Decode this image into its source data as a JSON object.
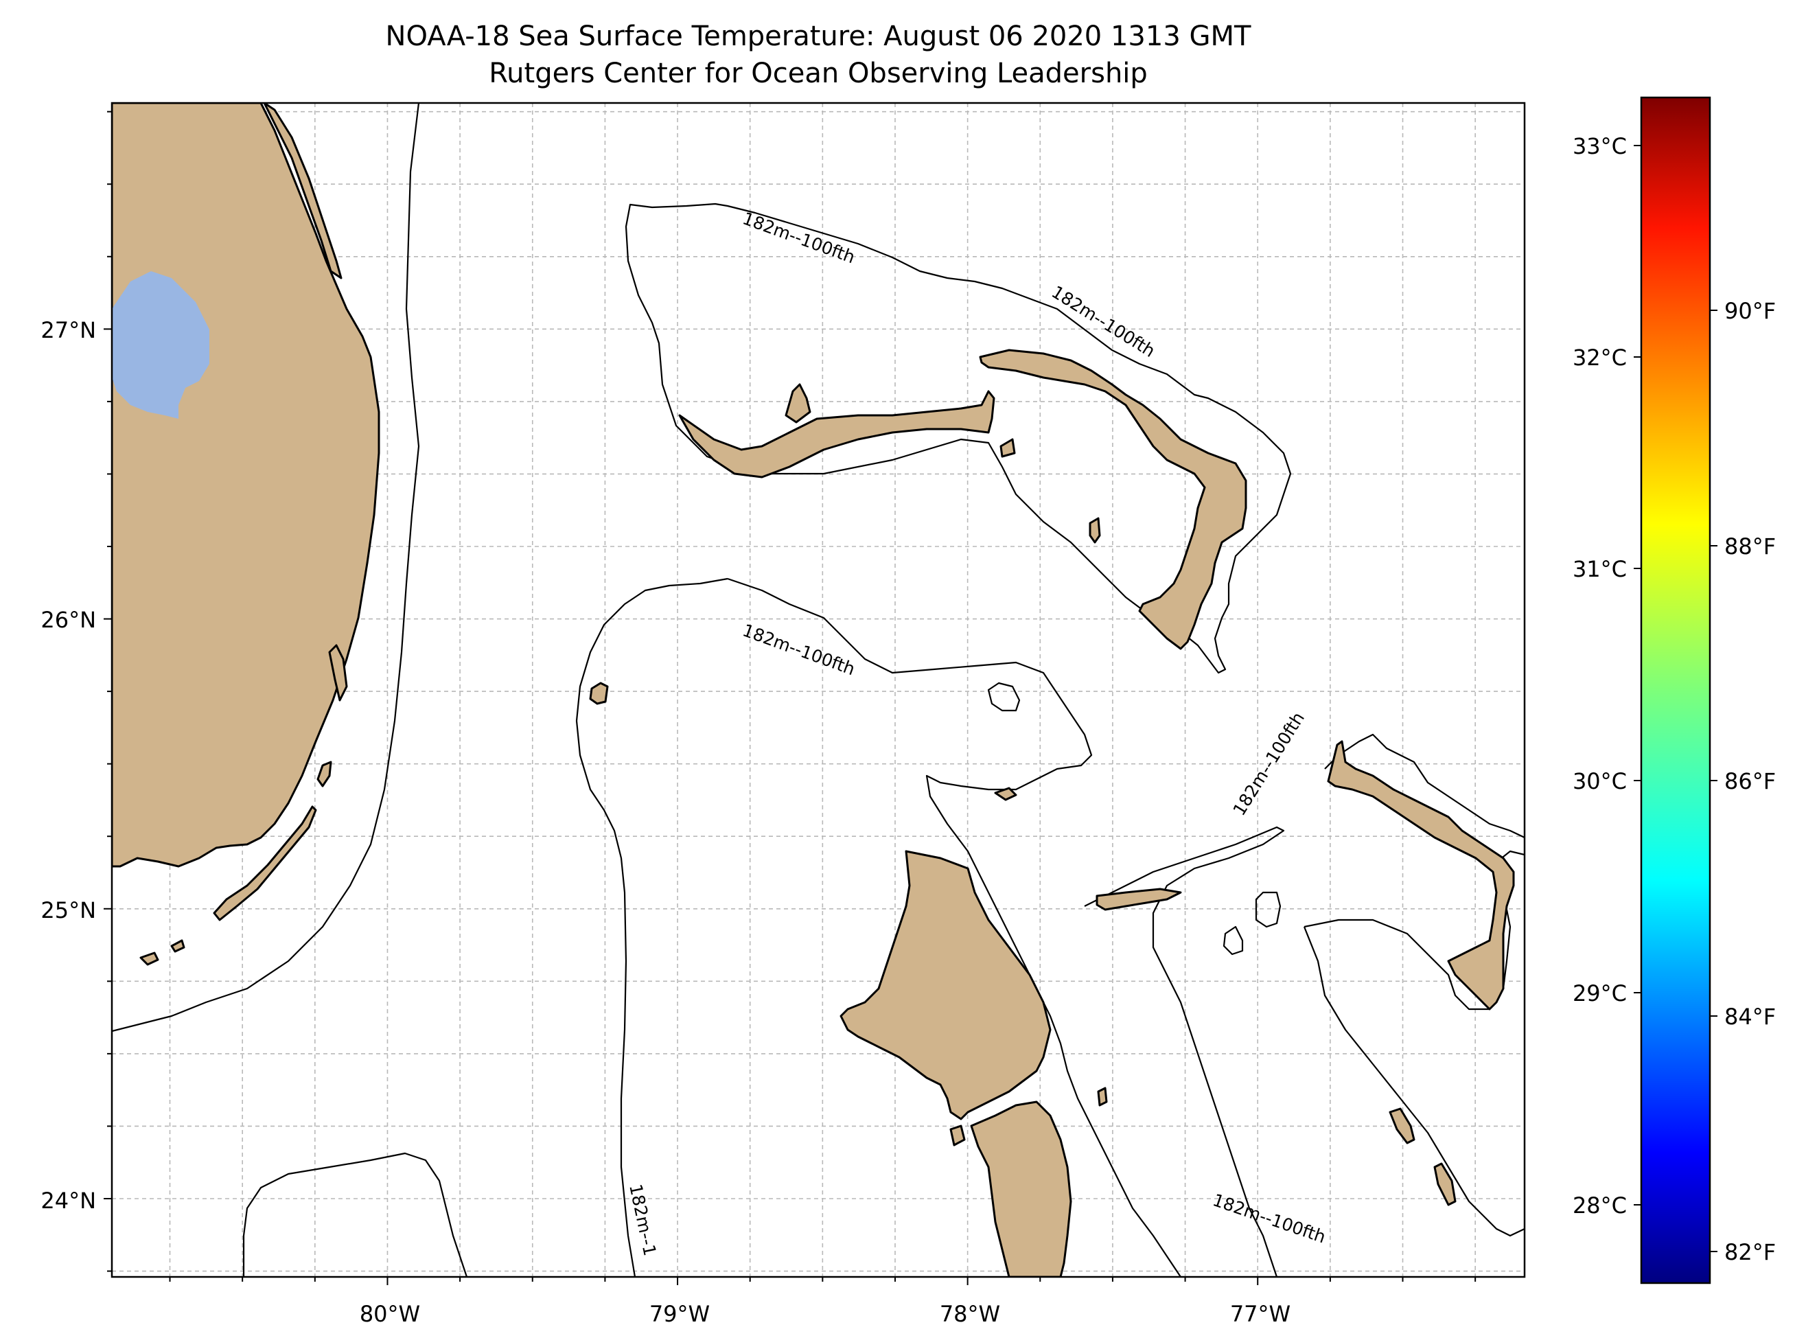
{
  "title": {
    "line1": "NOAA-18 Sea Surface Temperature: August 06 2020 1313 GMT",
    "line2": "Rutgers Center for Ocean Observing Leadership"
  },
  "map": {
    "lon_range": [
      -80.95,
      -76.08
    ],
    "lat_range": [
      23.73,
      27.78
    ],
    "lat_ticks": [
      {
        "value": 27,
        "label": "27°N"
      },
      {
        "value": 26,
        "label": "26°N"
      },
      {
        "value": 25,
        "label": "25°N"
      },
      {
        "value": 24,
        "label": "24°N"
      }
    ],
    "lon_ticks": [
      {
        "value": -80,
        "label": "80°W"
      },
      {
        "value": -79,
        "label": "79°W"
      },
      {
        "value": -78,
        "label": "78°W"
      },
      {
        "value": -77,
        "label": "77°W"
      }
    ],
    "grid": "dashed, every 0.25°",
    "land_color": "#d0b48c",
    "lake_color": "#99b6e3",
    "contour_labels": [
      "182m--100fth",
      "182m--100fth",
      "182m--100fth",
      "182m--100fth",
      "182m--1",
      "182m--100fth"
    ]
  },
  "colorbar": {
    "colormap": "jet",
    "celsius_ticks": [
      "33°C",
      "32°C",
      "31°C",
      "30°C",
      "29°C",
      "28°C"
    ],
    "fahrenheit_ticks": [
      "90°F",
      "88°F",
      "86°F",
      "84°F",
      "82°F"
    ],
    "range_c": [
      27.7,
      33.2
    ]
  }
}
